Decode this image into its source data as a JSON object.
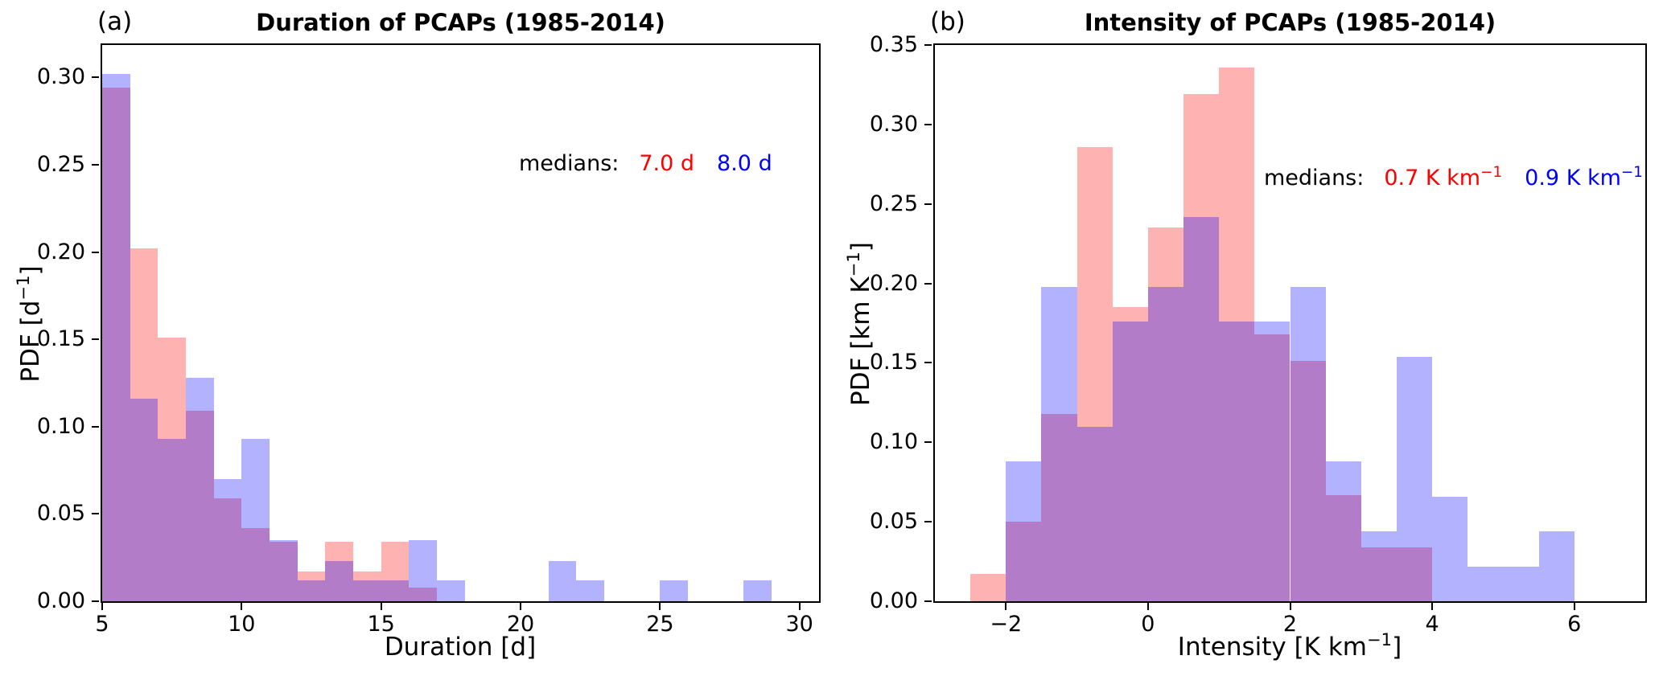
{
  "figure": {
    "background": "#ffffff",
    "axis_color": "#000000",
    "red_fill": "rgba(255,0,0,0.30)",
    "blue_fill": "rgba(0,0,255,0.30)",
    "red_text_color": "#ff0000",
    "blue_text_color": "#0000ff"
  },
  "chart_data": [
    {
      "type": "histogram",
      "panel_label": "(a)",
      "title": "Duration of PCAPs (1985-2014)",
      "xlabel": {
        "base": "Duration [d]",
        "sup": "",
        "tail": ""
      },
      "ylabel": {
        "base": "PDF [d",
        "sup": "−1",
        "tail": "]"
      },
      "xlim": [
        5,
        30.7
      ],
      "ylim": [
        0,
        0.3185
      ],
      "bin_width": 1,
      "grid": false,
      "xticks": [
        {
          "v": 5,
          "label": "5"
        },
        {
          "v": 10,
          "label": "10"
        },
        {
          "v": 15,
          "label": "15"
        },
        {
          "v": 20,
          "label": "20"
        },
        {
          "v": 25,
          "label": "25"
        },
        {
          "v": 30,
          "label": "30"
        }
      ],
      "yticks": [
        {
          "v": 0.0,
          "label": "0.00"
        },
        {
          "v": 0.05,
          "label": "0.05"
        },
        {
          "v": 0.1,
          "label": "0.10"
        },
        {
          "v": 0.15,
          "label": "0.15"
        },
        {
          "v": 0.2,
          "label": "0.20"
        },
        {
          "v": 0.25,
          "label": "0.25"
        },
        {
          "v": 0.3,
          "label": "0.30"
        }
      ],
      "series": [
        {
          "name": "red",
          "color": "rgba(255,0,0,0.30)",
          "bin_start": 5,
          "values": [
            0.294,
            0.202,
            0.151,
            0.109,
            0.059,
            0.042,
            0.034,
            0.017,
            0.034,
            0.017,
            0.034,
            0.008
          ],
          "median": "7.0 d"
        },
        {
          "name": "blue",
          "color": "rgba(0,0,255,0.30)",
          "bin_start": 5,
          "values": [
            0.302,
            0.116,
            0.093,
            0.128,
            0.07,
            0.093,
            0.035,
            0.012,
            0.023,
            0.012,
            0.012,
            0.035,
            0.012,
            0,
            0,
            0,
            0.023,
            0.012,
            0,
            0,
            0.012,
            0,
            0,
            0.012
          ],
          "median": "8.0 d"
        }
      ],
      "medians": {
        "prefix": "medians:",
        "red": {
          "base": "7.0 d",
          "sup": ""
        },
        "blue": {
          "base": "8.0 d",
          "sup": ""
        }
      }
    },
    {
      "type": "histogram",
      "panel_label": "(b)",
      "title": "Intensity of PCAPs (1985-2014)",
      "xlabel": {
        "base": "Intensity [K km",
        "sup": "−1",
        "tail": "]"
      },
      "ylabel": {
        "base": "PDF [km K",
        "sup": "−1",
        "tail": "]"
      },
      "xlim": [
        -3,
        7
      ],
      "ylim": [
        0,
        0.35
      ],
      "bin_width": 0.5,
      "grid": false,
      "xticks": [
        {
          "v": -2,
          "label": "−2"
        },
        {
          "v": 0,
          "label": "0"
        },
        {
          "v": 2,
          "label": "2"
        },
        {
          "v": 4,
          "label": "4"
        },
        {
          "v": 6,
          "label": "6"
        }
      ],
      "yticks": [
        {
          "v": 0.0,
          "label": "0.00"
        },
        {
          "v": 0.05,
          "label": "0.05"
        },
        {
          "v": 0.1,
          "label": "0.10"
        },
        {
          "v": 0.15,
          "label": "0.15"
        },
        {
          "v": 0.2,
          "label": "0.20"
        },
        {
          "v": 0.25,
          "label": "0.25"
        },
        {
          "v": 0.3,
          "label": "0.30"
        },
        {
          "v": 0.35,
          "label": "0.35"
        }
      ],
      "series": [
        {
          "name": "red",
          "color": "rgba(255,0,0,0.30)",
          "bin_start": -2.5,
          "values": [
            0.017,
            0.05,
            0.118,
            0.286,
            0.185,
            0.235,
            0.319,
            0.336,
            0.168,
            0.151,
            0.067,
            0.034,
            0.034
          ],
          "median": "0.7 K km⁻¹"
        },
        {
          "name": "blue",
          "color": "rgba(0,0,255,0.30)",
          "bin_start": -2.0,
          "values": [
            0.088,
            0.198,
            0.11,
            0.176,
            0.198,
            0.242,
            0.176,
            0.176,
            0.198,
            0.088,
            0.044,
            0.154,
            0.066,
            0.022,
            0.022,
            0.044
          ],
          "median": "0.9 K km⁻¹"
        }
      ],
      "medians": {
        "prefix": "medians:",
        "red": {
          "base": "0.7 K km",
          "sup": "−1"
        },
        "blue": {
          "base": "0.9 K km",
          "sup": "−1"
        }
      }
    }
  ]
}
